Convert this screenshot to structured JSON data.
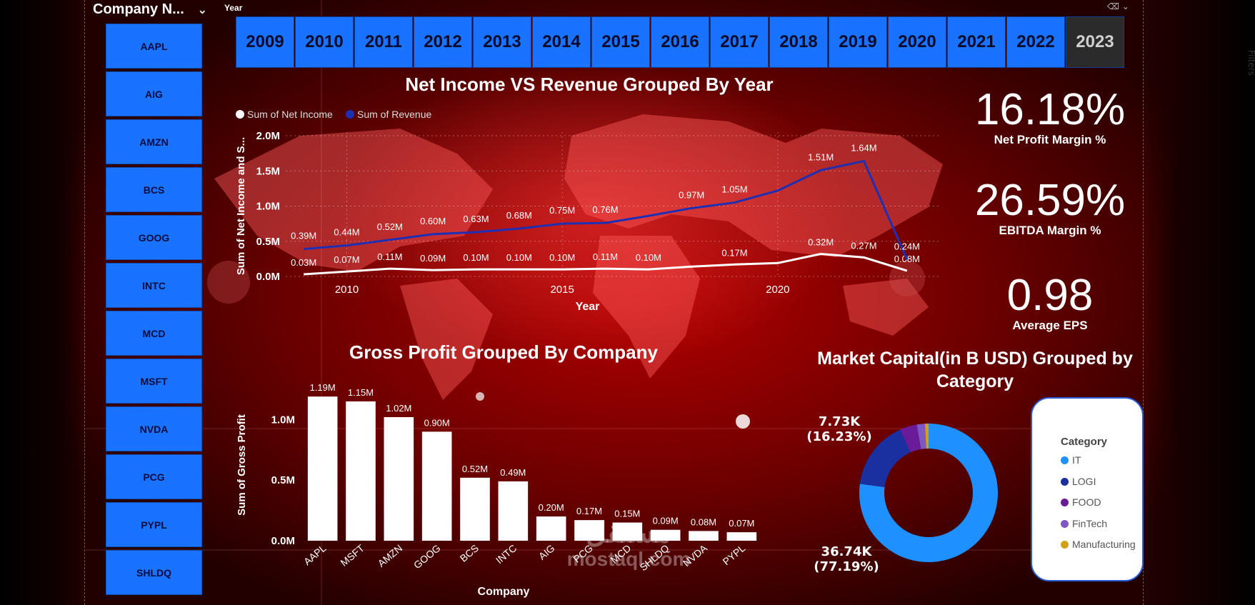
{
  "company_slicer": {
    "title": "Company N...",
    "items": [
      "AAPL",
      "AIG",
      "AMZN",
      "BCS",
      "GOOG",
      "INTC",
      "MCD",
      "MSFT",
      "NVDA",
      "PCG",
      "PYPL",
      "SHLDQ"
    ]
  },
  "year_slicer": {
    "title": "Year",
    "years": [
      "2009",
      "2010",
      "2011",
      "2012",
      "2013",
      "2014",
      "2015",
      "2016",
      "2017",
      "2018",
      "2019",
      "2020",
      "2021",
      "2022",
      "2023"
    ],
    "selected": "2023"
  },
  "kpis": [
    {
      "value": "16.18%",
      "label": "Net Profit Margin %"
    },
    {
      "value": "26.59%",
      "label": "EBITDA Margin %"
    },
    {
      "value": "0.98",
      "label": "Average EPS"
    }
  ],
  "side_tab": "Filters",
  "watermark": {
    "arabic": "مستقل",
    "latin": "mostaql.com"
  },
  "colors": {
    "slicer_blue": "#1a73ff",
    "revenue_line": "#1f2fb3",
    "net_income_line": "#ffffff",
    "it": "#1e90ff",
    "logi": "#1a2fa0",
    "food": "#6a1b9a",
    "fintech": "#7e57c2",
    "manufacturing": "#d4a017"
  },
  "chart_data": [
    {
      "type": "line",
      "title": "Net Income VS Revenue Grouped By Year",
      "xlabel": "Year",
      "ylabel": "Sum of Net Income and S...",
      "x": [
        2009,
        2010,
        2011,
        2012,
        2013,
        2014,
        2015,
        2016,
        2017,
        2018,
        2019,
        2020,
        2021,
        2022,
        2023
      ],
      "x_ticks": [
        "2010",
        "2015",
        "2020"
      ],
      "y_ticks": [
        "0.0M",
        "0.5M",
        "1.0M",
        "1.5M",
        "2.0M"
      ],
      "ylim": [
        0,
        2.0
      ],
      "grid": true,
      "legend": "top-left",
      "series": [
        {
          "name": "Sum of Net Income",
          "values": [
            0.03,
            0.07,
            0.11,
            0.09,
            0.1,
            0.1,
            0.1,
            0.11,
            0.1,
            0.14,
            0.17,
            0.19,
            0.32,
            0.27,
            0.08
          ],
          "labels": [
            "0.03M",
            "0.07M",
            "0.11M",
            "0.09M",
            "0.10M",
            "0.10M",
            "0.10M",
            "0.11M",
            "0.10M",
            "",
            "0.17M",
            "",
            "0.32M",
            "0.27M",
            "0.08M"
          ]
        },
        {
          "name": "Sum of Revenue",
          "values": [
            0.39,
            0.44,
            0.52,
            0.6,
            0.63,
            0.68,
            0.75,
            0.76,
            0.86,
            0.97,
            1.05,
            1.22,
            1.51,
            1.64,
            0.24
          ],
          "labels": [
            "0.39M",
            "0.44M",
            "0.52M",
            "0.60M",
            "0.63M",
            "0.68M",
            "0.75M",
            "0.76M",
            "",
            "0.97M",
            "1.05M",
            "",
            "1.51M",
            "1.64M",
            "0.24M"
          ]
        }
      ]
    },
    {
      "type": "bar",
      "title": "Gross Profit Grouped By Company",
      "xlabel": "Company",
      "ylabel": "Sum of Gross Profit",
      "categories": [
        "AAPL",
        "MSFT",
        "AMZN",
        "GOOG",
        "BCS",
        "INTC",
        "AIG",
        "PCG",
        "MCD",
        "SHLDQ",
        "NVDA",
        "PYPL"
      ],
      "values": [
        1.19,
        1.15,
        1.02,
        0.9,
        0.52,
        0.49,
        0.2,
        0.17,
        0.15,
        0.09,
        0.08,
        0.07
      ],
      "labels": [
        "1.19M",
        "1.15M",
        "1.02M",
        "0.90M",
        "0.52M",
        "0.49M",
        "0.20M",
        "0.17M",
        "0.15M",
        "0.09M",
        "0.08M",
        "0.07M"
      ],
      "y_ticks": [
        "0.0M",
        "0.5M",
        "1.0M"
      ],
      "ylim": [
        0,
        1.25
      ]
    },
    {
      "type": "pie",
      "title": "Market Capital(in B USD) Grouped by Category",
      "legend_title": "Category",
      "legend": "right",
      "categories": [
        "IT",
        "LOGI",
        "FOOD",
        "FinTech",
        "Manufacturing"
      ],
      "values": [
        36.74,
        7.73,
        1.9,
        0.9,
        0.4
      ],
      "labels": [
        {
          "value": "36.74K",
          "pct": "(77.19%)"
        },
        {
          "value": "7.73K",
          "pct": "(16.23%)"
        }
      ]
    }
  ]
}
